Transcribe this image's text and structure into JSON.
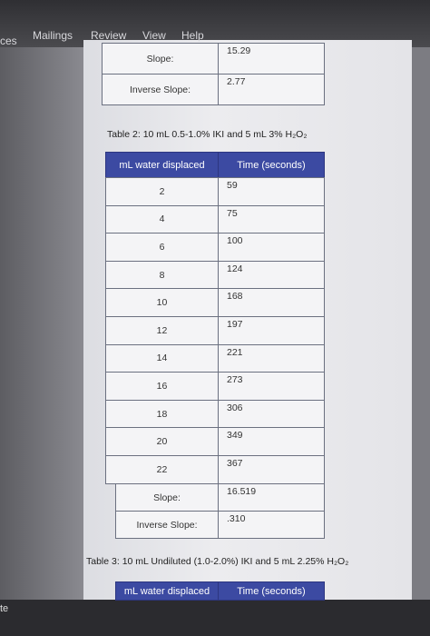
{
  "menu": [
    "ces",
    "Mailings",
    "Review",
    "View",
    "Help"
  ],
  "table1": {
    "rows": [
      [
        "Slope:",
        "15.29"
      ],
      [
        "Inverse Slope:",
        "2.77"
      ]
    ]
  },
  "table2": {
    "caption": "Table 2: 10 mL 0.5-1.0% IKI and 5 mL 3% H₂O₂",
    "header": [
      "mL water displaced",
      "Time (seconds)"
    ],
    "rows": [
      [
        "2",
        "59"
      ],
      [
        "4",
        "75"
      ],
      [
        "6",
        "100"
      ],
      [
        "8",
        "124"
      ],
      [
        "10",
        "168"
      ],
      [
        "12",
        "197"
      ],
      [
        "14",
        "221"
      ],
      [
        "16",
        "273"
      ],
      [
        "18",
        "306"
      ],
      [
        "20",
        "349"
      ],
      [
        "22",
        "367"
      ]
    ],
    "summary": [
      [
        "Slope:",
        "16.519"
      ],
      [
        "Inverse Slope:",
        ".310"
      ]
    ]
  },
  "table3": {
    "caption": "Table 3: 10 mL Undiluted (1.0-2.0%) IKI and 5 mL 2.25% H₂O₂",
    "header": [
      "mL water displaced",
      "Time (seconds)"
    ]
  },
  "status": "te"
}
